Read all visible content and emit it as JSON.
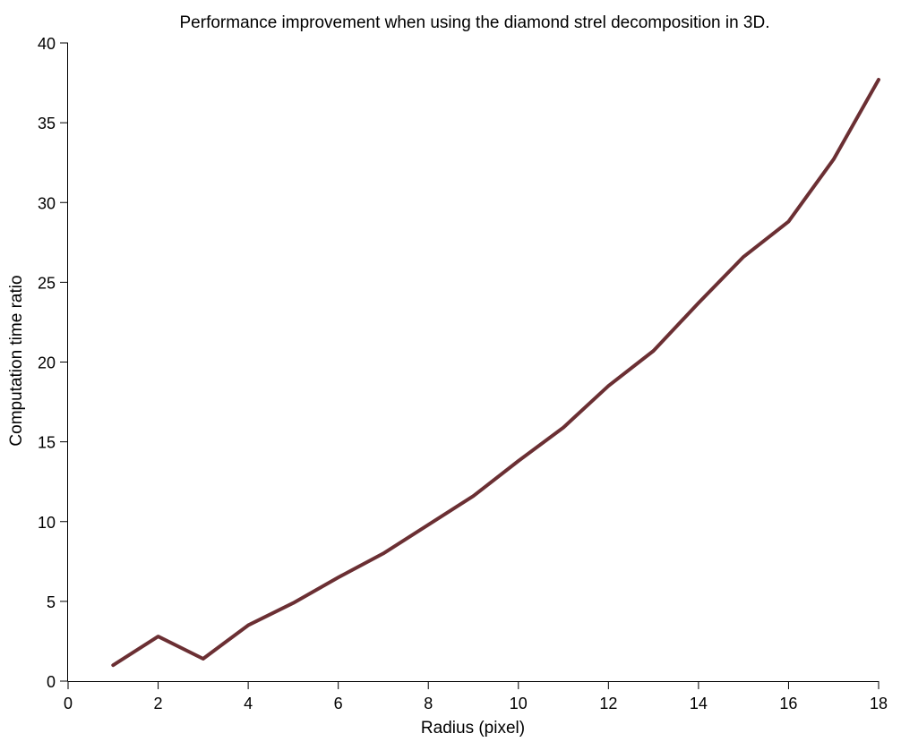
{
  "chart_data": {
    "type": "line",
    "title": "Performance improvement when using the diamond strel decomposition in 3D.",
    "xlabel": "Radius (pixel)",
    "ylabel": "Computation time ratio",
    "xlim": [
      0,
      18
    ],
    "ylim": [
      0,
      40
    ],
    "xticks": [
      0,
      2,
      4,
      6,
      8,
      10,
      12,
      14,
      16,
      18
    ],
    "yticks": [
      0,
      5,
      10,
      15,
      20,
      25,
      30,
      35,
      40
    ],
    "grid": false,
    "series": [
      {
        "color": "#6b2f33",
        "x": [
          1,
          2,
          3,
          4,
          5,
          6,
          7,
          8,
          9,
          10,
          11,
          12,
          13,
          14,
          15,
          16,
          17,
          18
        ],
        "y": [
          1.0,
          2.8,
          1.4,
          3.5,
          4.9,
          6.5,
          8.0,
          9.8,
          11.6,
          13.8,
          15.9,
          18.5,
          20.7,
          23.7,
          26.6,
          28.8,
          32.7,
          37.7
        ]
      }
    ]
  }
}
